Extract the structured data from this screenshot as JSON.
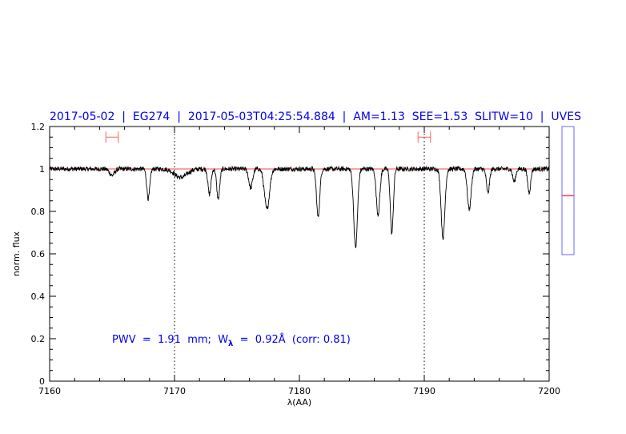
{
  "chart_data": {
    "type": "line",
    "title": "2017-05-02  |  EG274  |  2017-05-03T04:25:54.884  |  AM=1.13  SEE=1.53  SLITW=10  |  UVES",
    "xlabel": "λ(AA)",
    "ylabel": "norm. flux",
    "xlim": [
      7160,
      7200
    ],
    "ylim": [
      0,
      1.2
    ],
    "xticks": [
      7160,
      7170,
      7180,
      7190,
      7200
    ],
    "yticks": [
      0,
      0.2,
      0.4,
      0.6,
      0.8,
      1,
      1.2
    ],
    "ytick_labels": [
      "0",
      "0.2",
      "0.4",
      "0.6",
      "0.8",
      "1",
      "1.2"
    ],
    "grid": false,
    "continuum_level": 1.0,
    "vertical_markers": [
      7170,
      7190
    ],
    "error_bars": [
      {
        "xmin": 7164.5,
        "xmax": 7165.5,
        "y": 1.15
      },
      {
        "xmin": 7189.5,
        "xmax": 7190.5,
        "y": 1.15
      }
    ],
    "absorption_lines": [
      {
        "center": 7167.9,
        "min_flux": 0.86,
        "width": 0.12
      },
      {
        "center": 7165.0,
        "min_flux": 0.97,
        "width": 0.2
      },
      {
        "center": 7170.5,
        "min_flux": 0.96,
        "width": 0.5
      },
      {
        "center": 7172.8,
        "min_flux": 0.88,
        "width": 0.12
      },
      {
        "center": 7173.5,
        "min_flux": 0.86,
        "width": 0.12
      },
      {
        "center": 7176.1,
        "min_flux": 0.91,
        "width": 0.15
      },
      {
        "center": 7177.4,
        "min_flux": 0.81,
        "width": 0.2
      },
      {
        "center": 7181.5,
        "min_flux": 0.775,
        "width": 0.13
      },
      {
        "center": 7184.5,
        "min_flux": 0.63,
        "width": 0.15
      },
      {
        "center": 7186.3,
        "min_flux": 0.785,
        "width": 0.14
      },
      {
        "center": 7187.4,
        "min_flux": 0.695,
        "width": 0.12
      },
      {
        "center": 7191.5,
        "min_flux": 0.675,
        "width": 0.15
      },
      {
        "center": 7193.6,
        "min_flux": 0.81,
        "width": 0.15
      },
      {
        "center": 7195.1,
        "min_flux": 0.885,
        "width": 0.12
      },
      {
        "center": 7198.4,
        "min_flux": 0.89,
        "width": 0.12
      },
      {
        "center": 7197.2,
        "min_flux": 0.94,
        "width": 0.12
      }
    ],
    "annotation": {
      "prefix": "PWV  =  1.91  mm;  W",
      "subscript": "λ",
      "suffix": "  =  0.92Å  (corr: 0.81)"
    },
    "side_indicator_level": 0.46,
    "colors": {
      "spectrum": "#000000",
      "continuum": "#ff4040",
      "error_bar": "#ff6060",
      "title": "#0000ee",
      "indicator_frame": "#6a6aff",
      "indicator_mark": "#ff4040"
    }
  }
}
